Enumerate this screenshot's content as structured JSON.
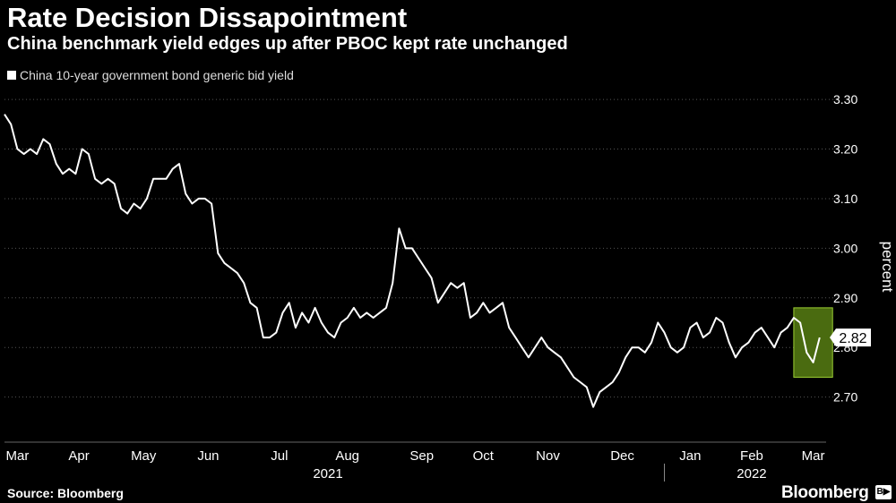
{
  "title": "Rate Decision Dissapointment",
  "subtitle": "China benchmark yield edges up after PBOC kept rate unchanged",
  "legend": "China 10-year government bond generic bid yield",
  "source": "Source: Bloomberg",
  "brand": "Bloomberg",
  "colors": {
    "background": "#000000",
    "line": "#ffffff",
    "highlight": "#9acd32",
    "highlight_fill": "#4a6b10"
  },
  "chart_data": {
    "type": "line",
    "title": "Rate Decision Dissapointment",
    "subtitle": "China benchmark yield edges up after PBOC kept rate unchanged",
    "xlabel": "",
    "ylabel": "percent",
    "ylim": [
      2.62,
      3.32
    ],
    "yticks": [
      2.7,
      2.8,
      2.9,
      3.0,
      3.1,
      3.2,
      3.3
    ],
    "ytick_labels": [
      "2.70",
      "2.80",
      "2.90",
      "3.00",
      "3.10",
      "3.20",
      "3.30"
    ],
    "xlim": [
      0,
      12.5
    ],
    "xticks": [
      {
        "label": "Mar",
        "x": 0.2
      },
      {
        "label": "Apr",
        "x": 1.15
      },
      {
        "label": "May",
        "x": 2.15
      },
      {
        "label": "Jun",
        "x": 3.15
      },
      {
        "label": "Jul",
        "x": 4.25
      },
      {
        "label": "Aug",
        "x": 5.3
      },
      {
        "label": "Sep",
        "x": 6.45
      },
      {
        "label": "Oct",
        "x": 7.4
      },
      {
        "label": "Nov",
        "x": 8.4
      },
      {
        "label": "Dec",
        "x": 9.55
      },
      {
        "label": "Jan",
        "x": 10.6
      },
      {
        "label": "Feb",
        "x": 11.55
      },
      {
        "label": "Mar",
        "x": 12.5
      }
    ],
    "year_labels": [
      {
        "label": "2021",
        "x": 5.0
      },
      {
        "label": "2022",
        "x": 11.55
      }
    ],
    "year_divider_x": 10.2,
    "last_value": 2.82,
    "last_value_label": "2.82",
    "highlight": {
      "x_start": 12.2,
      "x_end": 12.8,
      "y_low": 2.74,
      "y_high": 2.88
    },
    "series": [
      {
        "name": "China 10-year government bond generic bid yield",
        "x": [
          0,
          0.1,
          0.2,
          0.3,
          0.4,
          0.5,
          0.6,
          0.7,
          0.8,
          0.9,
          1.0,
          1.1,
          1.2,
          1.3,
          1.4,
          1.5,
          1.6,
          1.7,
          1.8,
          1.9,
          2.0,
          2.1,
          2.2,
          2.3,
          2.4,
          2.5,
          2.6,
          2.7,
          2.8,
          2.9,
          3.0,
          3.1,
          3.2,
          3.3,
          3.4,
          3.5,
          3.6,
          3.7,
          3.8,
          3.9,
          4.0,
          4.1,
          4.2,
          4.3,
          4.4,
          4.5,
          4.6,
          4.7,
          4.8,
          4.9,
          5.0,
          5.1,
          5.2,
          5.3,
          5.4,
          5.5,
          5.6,
          5.7,
          5.8,
          5.9,
          6.0,
          6.1,
          6.2,
          6.3,
          6.4,
          6.5,
          6.6,
          6.7,
          6.8,
          6.9,
          7.0,
          7.1,
          7.2,
          7.3,
          7.4,
          7.5,
          7.6,
          7.7,
          7.8,
          7.9,
          8.0,
          8.1,
          8.2,
          8.3,
          8.4,
          8.5,
          8.6,
          8.7,
          8.8,
          8.9,
          9.0,
          9.1,
          9.2,
          9.3,
          9.4,
          9.5,
          9.6,
          9.7,
          9.8,
          9.9,
          10.0,
          10.1,
          10.2,
          10.3,
          10.4,
          10.5,
          10.6,
          10.7,
          10.8,
          10.9,
          11.0,
          11.1,
          11.2,
          11.3,
          11.4,
          11.5,
          11.6,
          11.7,
          11.8,
          11.9,
          12.0,
          12.1,
          12.2,
          12.3,
          12.4,
          12.5,
          12.6
        ],
        "values": [
          3.27,
          3.25,
          3.2,
          3.19,
          3.2,
          3.19,
          3.22,
          3.21,
          3.17,
          3.15,
          3.16,
          3.15,
          3.2,
          3.19,
          3.14,
          3.13,
          3.14,
          3.13,
          3.08,
          3.07,
          3.09,
          3.08,
          3.1,
          3.14,
          3.14,
          3.14,
          3.16,
          3.17,
          3.11,
          3.09,
          3.1,
          3.1,
          3.09,
          2.99,
          2.97,
          2.96,
          2.95,
          2.93,
          2.89,
          2.88,
          2.82,
          2.82,
          2.83,
          2.87,
          2.89,
          2.84,
          2.87,
          2.85,
          2.88,
          2.85,
          2.83,
          2.82,
          2.85,
          2.86,
          2.88,
          2.86,
          2.87,
          2.86,
          2.87,
          2.88,
          2.93,
          3.04,
          3.0,
          3.0,
          2.98,
          2.96,
          2.94,
          2.89,
          2.91,
          2.93,
          2.92,
          2.93,
          2.86,
          2.87,
          2.89,
          2.87,
          2.88,
          2.89,
          2.84,
          2.82,
          2.8,
          2.78,
          2.8,
          2.82,
          2.8,
          2.79,
          2.78,
          2.76,
          2.74,
          2.73,
          2.72,
          2.68,
          2.71,
          2.72,
          2.73,
          2.75,
          2.78,
          2.8,
          2.8,
          2.79,
          2.81,
          2.85,
          2.83,
          2.8,
          2.79,
          2.8,
          2.84,
          2.85,
          2.82,
          2.83,
          2.86,
          2.85,
          2.81,
          2.78,
          2.8,
          2.81,
          2.83,
          2.84,
          2.82,
          2.8,
          2.83,
          2.84,
          2.86,
          2.85,
          2.79,
          2.77,
          2.82
        ]
      }
    ]
  }
}
